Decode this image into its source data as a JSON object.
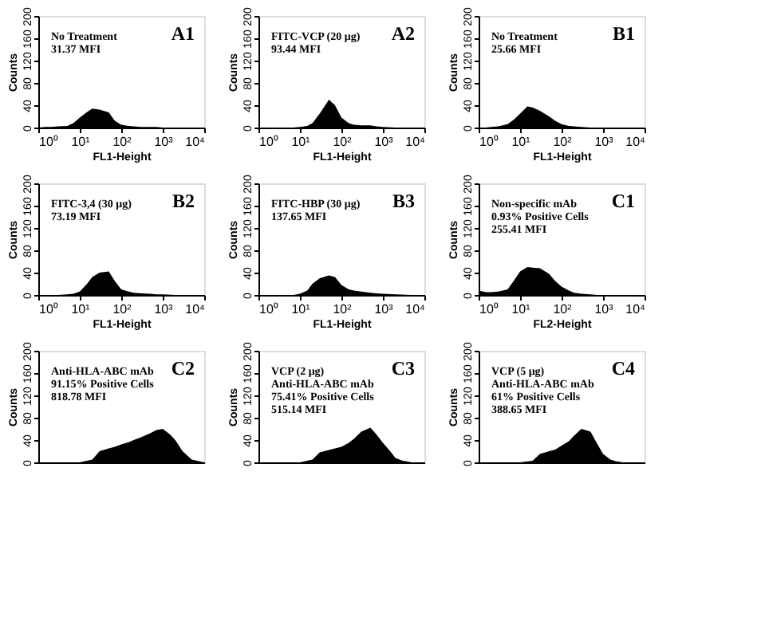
{
  "chart_data": [
    {
      "type": "area",
      "title": "A1",
      "annotations": [
        "No Treatment",
        "31.37 MFI"
      ],
      "xlabel": "FL1-Height",
      "ylabel": "Counts",
      "log": "x",
      "grid": false,
      "x": [
        1,
        1.5,
        2,
        3,
        5,
        7,
        10,
        15,
        20,
        30,
        50,
        70,
        100,
        150,
        200,
        300,
        500,
        700,
        1000,
        2000,
        5000,
        10000
      ],
      "series": [
        {
          "color": "#000000",
          "values": [
            0,
            1,
            1,
            2,
            3,
            8,
            18,
            28,
            34,
            32,
            27,
            12,
            5,
            3,
            2,
            1,
            1,
            1,
            0,
            0,
            0,
            0
          ]
        }
      ],
      "xlim": [
        1,
        10000
      ],
      "xticks": [
        {
          "value": 1,
          "label": "10⁰"
        },
        {
          "value": 10,
          "label": "10¹"
        },
        {
          "value": 100,
          "label": "10²"
        },
        {
          "value": 1000,
          "label": "10³"
        },
        {
          "value": 10000,
          "label": "10⁴"
        }
      ],
      "ylim": [
        0,
        200
      ],
      "yticks": [
        0,
        40,
        80,
        120,
        160,
        200
      ]
    },
    {
      "type": "area",
      "title": "A2",
      "annotations": [
        "FITC-VCP (20 μg)",
        "93.44 MFI"
      ],
      "xlabel": "FL1-Height",
      "ylabel": "Counts",
      "log": "x",
      "grid": false,
      "x": [
        1,
        1.5,
        2,
        3,
        5,
        7,
        10,
        15,
        20,
        30,
        50,
        70,
        100,
        150,
        200,
        300,
        500,
        700,
        1000,
        2000,
        5000,
        10000
      ],
      "series": [
        {
          "color": "#000000",
          "values": [
            0,
            0,
            0,
            0,
            0,
            0,
            1,
            3,
            8,
            25,
            50,
            40,
            18,
            8,
            5,
            4,
            4,
            2,
            1,
            0,
            0,
            0
          ]
        }
      ],
      "xlim": [
        1,
        10000
      ],
      "xticks": [
        {
          "value": 1,
          "label": "10⁰"
        },
        {
          "value": 10,
          "label": "10¹"
        },
        {
          "value": 100,
          "label": "10²"
        },
        {
          "value": 1000,
          "label": "10³"
        },
        {
          "value": 10000,
          "label": "10⁴"
        }
      ],
      "ylim": [
        0,
        200
      ],
      "yticks": [
        0,
        40,
        80,
        120,
        160,
        200
      ]
    },
    {
      "type": "area",
      "title": "B1",
      "annotations": [
        "No Treatment",
        "25.66 MFI"
      ],
      "xlabel": "FL1-Height",
      "ylabel": "Counts",
      "log": "x",
      "grid": false,
      "x": [
        1,
        1.5,
        2,
        3,
        5,
        7,
        10,
        15,
        20,
        30,
        50,
        70,
        100,
        150,
        200,
        300,
        500,
        700,
        1000,
        2000,
        5000,
        10000
      ],
      "series": [
        {
          "color": "#000000",
          "values": [
            0,
            0,
            1,
            2,
            6,
            14,
            25,
            38,
            36,
            30,
            20,
            12,
            6,
            3,
            2,
            1,
            0,
            0,
            0,
            0,
            0,
            0
          ]
        }
      ],
      "xlim": [
        1,
        10000
      ],
      "xticks": [
        {
          "value": 1,
          "label": "10⁰"
        },
        {
          "value": 10,
          "label": "10¹"
        },
        {
          "value": 100,
          "label": "10²"
        },
        {
          "value": 1000,
          "label": "10³"
        },
        {
          "value": 10000,
          "label": "10⁴"
        }
      ],
      "ylim": [
        0,
        200
      ],
      "yticks": [
        0,
        40,
        80,
        120,
        160,
        200
      ]
    },
    {
      "type": "area",
      "title": "B2",
      "annotations": [
        "FITC-3,4 (30 μg)",
        "73.19 MFI"
      ],
      "xlabel": "FL1-Height",
      "ylabel": "Counts",
      "log": "x",
      "grid": false,
      "x": [
        1,
        1.5,
        2,
        3,
        5,
        7,
        10,
        15,
        20,
        30,
        50,
        70,
        100,
        150,
        200,
        300,
        500,
        700,
        1000,
        2000,
        5000,
        10000
      ],
      "series": [
        {
          "color": "#000000",
          "values": [
            0,
            0,
            0,
            0,
            1,
            2,
            6,
            20,
            32,
            40,
            42,
            25,
            10,
            6,
            4,
            3,
            2,
            1,
            1,
            0,
            0,
            0
          ]
        }
      ],
      "xlim": [
        1,
        10000
      ],
      "xticks": [
        {
          "value": 1,
          "label": "10⁰"
        },
        {
          "value": 10,
          "label": "10¹"
        },
        {
          "value": 100,
          "label": "10²"
        },
        {
          "value": 1000,
          "label": "10³"
        },
        {
          "value": 10000,
          "label": "10⁴"
        }
      ],
      "ylim": [
        0,
        200
      ],
      "yticks": [
        0,
        40,
        80,
        120,
        160,
        200
      ]
    },
    {
      "type": "area",
      "title": "B3",
      "annotations": [
        "FITC-HBP (30 μg)",
        "137.65 MFI"
      ],
      "xlabel": "FL1-Height",
      "ylabel": "Counts",
      "log": "x",
      "grid": false,
      "x": [
        1,
        1.5,
        2,
        3,
        5,
        7,
        10,
        15,
        20,
        30,
        50,
        70,
        100,
        150,
        200,
        300,
        500,
        700,
        1000,
        2000,
        5000,
        10000
      ],
      "series": [
        {
          "color": "#000000",
          "values": [
            0,
            0,
            0,
            0,
            0,
            0,
            2,
            8,
            20,
            30,
            35,
            32,
            18,
            10,
            8,
            6,
            4,
            3,
            2,
            1,
            0,
            0
          ]
        }
      ],
      "xlim": [
        1,
        10000
      ],
      "xticks": [
        {
          "value": 1,
          "label": "10⁰"
        },
        {
          "value": 10,
          "label": "10¹"
        },
        {
          "value": 100,
          "label": "10²"
        },
        {
          "value": 1000,
          "label": "10³"
        },
        {
          "value": 10000,
          "label": "10⁴"
        }
      ],
      "ylim": [
        0,
        200
      ],
      "yticks": [
        0,
        40,
        80,
        120,
        160,
        200
      ]
    },
    {
      "type": "area",
      "title": "C1",
      "annotations": [
        "Non-specific mAb",
        "0.93% Positive Cells",
        "255.41 MFI"
      ],
      "xlabel": "FL2-Height",
      "ylabel": "Counts",
      "log": "x",
      "grid": false,
      "x": [
        1,
        1.5,
        2,
        3,
        5,
        7,
        10,
        15,
        20,
        30,
        50,
        70,
        100,
        150,
        200,
        300,
        500,
        700,
        1000,
        2000,
        5000,
        10000
      ],
      "series": [
        {
          "color": "#000000",
          "values": [
            8,
            5,
            5,
            6,
            10,
            25,
            42,
            50,
            49,
            48,
            38,
            25,
            15,
            8,
            4,
            2,
            1,
            0,
            0,
            0,
            0,
            0
          ]
        }
      ],
      "xlim": [
        1,
        10000
      ],
      "xticks": [
        {
          "value": 1,
          "label": "10⁰"
        },
        {
          "value": 10,
          "label": "10¹"
        },
        {
          "value": 100,
          "label": "10²"
        },
        {
          "value": 1000,
          "label": "10³"
        },
        {
          "value": 10000,
          "label": "10⁴"
        }
      ],
      "ylim": [
        0,
        200
      ],
      "yticks": [
        0,
        40,
        80,
        120,
        160,
        200
      ]
    },
    {
      "type": "area",
      "title": "C2",
      "annotations": [
        "Anti-HLA-ABC mAb",
        "91.15% Positive Cells",
        "818.78 MFI"
      ],
      "ylabel": "Counts",
      "log": "x",
      "grid": false,
      "tick_labels": "y",
      "x": [
        1,
        2,
        5,
        10,
        20,
        30,
        50,
        70,
        100,
        150,
        200,
        300,
        500,
        700,
        1000,
        1500,
        2000,
        3000,
        5000,
        10000
      ],
      "series": [
        {
          "color": "#000000",
          "values": [
            0,
            0,
            0,
            0,
            5,
            20,
            25,
            28,
            32,
            36,
            40,
            45,
            52,
            58,
            60,
            50,
            40,
            20,
            5,
            0
          ]
        }
      ],
      "xlim": [
        1,
        10000
      ],
      "ylim": [
        0,
        200
      ],
      "yticks": [
        0,
        40,
        80,
        120,
        160,
        200
      ]
    },
    {
      "type": "area",
      "title": "C3",
      "annotations": [
        "VCP (2 μg)",
        "Anti-HLA-ABC mAb",
        "75.41% Positive Cells",
        "515.14 MFI"
      ],
      "ylabel": "Counts",
      "log": "x",
      "grid": false,
      "tick_labels": "y",
      "x": [
        1,
        2,
        5,
        10,
        20,
        30,
        50,
        70,
        100,
        150,
        200,
        300,
        500,
        700,
        1000,
        1500,
        2000,
        3000,
        5000,
        10000
      ],
      "series": [
        {
          "color": "#000000",
          "values": [
            0,
            0,
            0,
            0,
            5,
            18,
            22,
            25,
            28,
            35,
            42,
            55,
            62,
            50,
            35,
            20,
            8,
            3,
            0,
            0
          ]
        }
      ],
      "xlim": [
        1,
        10000
      ],
      "ylim": [
        0,
        200
      ],
      "yticks": [
        0,
        40,
        80,
        120,
        160,
        200
      ]
    },
    {
      "type": "area",
      "title": "C4",
      "annotations": [
        "VCP (5 μg)",
        "Anti-HLA-ABC mAb",
        "61% Positive Cells",
        "388.65 MFI"
      ],
      "ylabel": "Counts",
      "log": "x",
      "grid": false,
      "tick_labels": "y",
      "x": [
        1,
        2,
        5,
        10,
        20,
        30,
        50,
        70,
        100,
        150,
        200,
        300,
        500,
        700,
        1000,
        1500,
        2000,
        3000,
        5000,
        10000
      ],
      "series": [
        {
          "color": "#000000",
          "values": [
            0,
            0,
            0,
            0,
            3,
            15,
            20,
            23,
            30,
            38,
            48,
            60,
            55,
            35,
            15,
            5,
            2,
            0,
            0,
            0
          ]
        }
      ],
      "xlim": [
        1,
        10000
      ],
      "ylim": [
        0,
        200
      ],
      "yticks": [
        0,
        40,
        80,
        120,
        160,
        200
      ]
    }
  ]
}
